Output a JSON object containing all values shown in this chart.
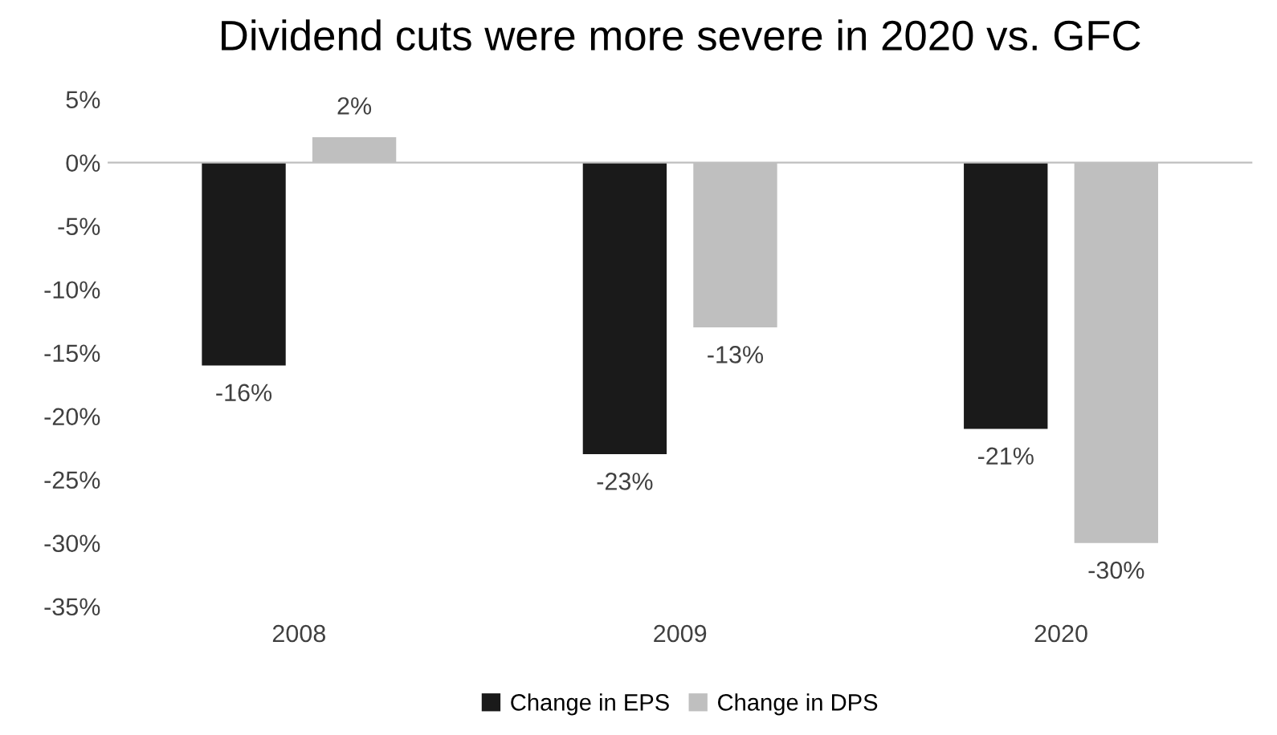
{
  "chart_data": {
    "type": "bar",
    "title": "Dividend cuts were more severe in 2020 vs. GFC",
    "categories": [
      "2008",
      "2009",
      "2020"
    ],
    "series": [
      {
        "name": "Change in EPS",
        "color": "#1a1a1a",
        "values": [
          -16,
          -23,
          -21
        ],
        "value_labels": [
          "-16%",
          "-23%",
          "-21%"
        ]
      },
      {
        "name": "Change in DPS",
        "color": "#bfbfbf",
        "values": [
          2,
          -13,
          -30
        ],
        "value_labels": [
          "2%",
          "-13%",
          "-30%"
        ]
      }
    ],
    "ylim": [
      -35,
      5
    ],
    "yticks": [
      {
        "value": 5,
        "label": "5%"
      },
      {
        "value": 0,
        "label": "0%"
      },
      {
        "value": -5,
        "label": "-5%"
      },
      {
        "value": -10,
        "label": "-10%"
      },
      {
        "value": -15,
        "label": "-15%"
      },
      {
        "value": -20,
        "label": "-20%"
      },
      {
        "value": -25,
        "label": "-25%"
      },
      {
        "value": -30,
        "label": "-30%"
      },
      {
        "value": -35,
        "label": "-35%"
      }
    ],
    "legend": "bottom"
  }
}
